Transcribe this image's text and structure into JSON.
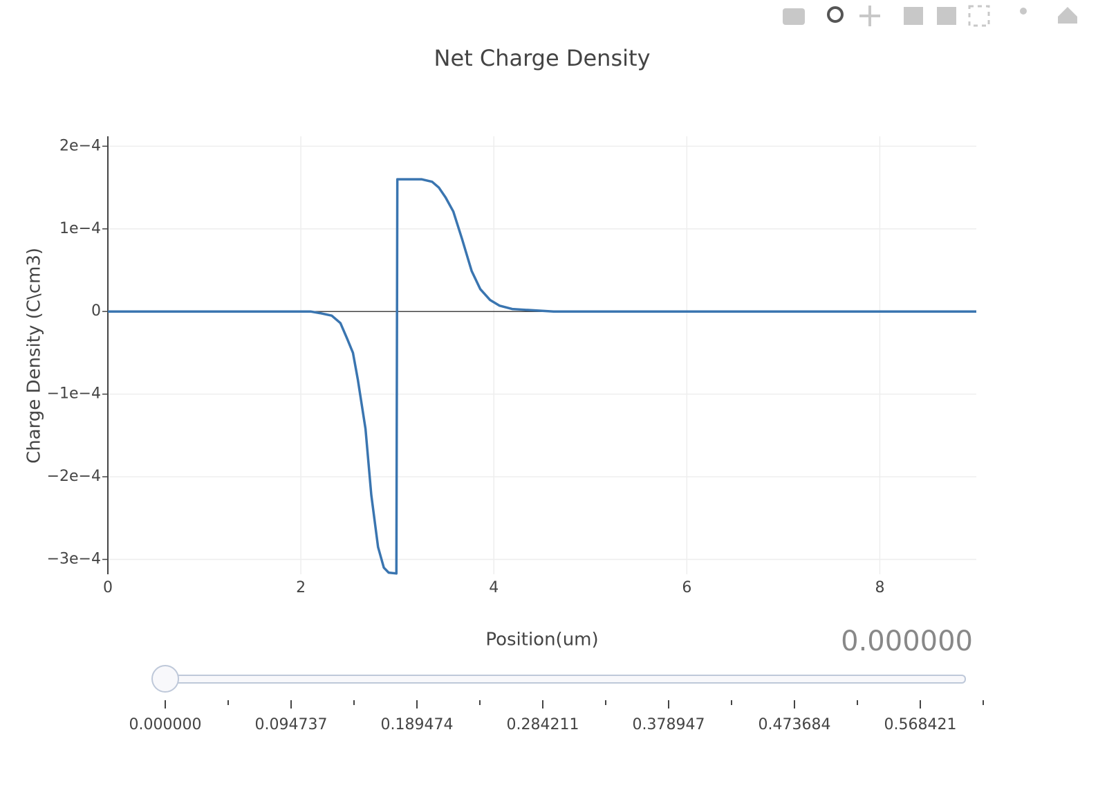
{
  "chart_data": {
    "type": "line",
    "title": "Net Charge Density",
    "x_label": "Position(um)",
    "y_label": "Charge Density (C\\cm3)",
    "x": [
      0,
      2.1,
      2.2,
      2.32,
      2.41,
      2.48,
      2.54,
      2.59,
      2.67,
      2.73,
      2.8,
      2.86,
      2.91,
      2.99,
      3.0,
      3.25,
      3.36,
      3.43,
      3.5,
      3.58,
      3.67,
      3.77,
      3.86,
      3.96,
      4.06,
      4.19,
      4.33,
      4.62,
      9
    ],
    "series": [
      {
        "name": "Net Charge Density",
        "color": "#3a75b0",
        "values": [
          0,
          0,
          -2e-06,
          -5e-06,
          -1.4e-05,
          -3.3e-05,
          -5e-05,
          -8.2e-05,
          -0.000142,
          -0.000222,
          -0.000285,
          -0.00031,
          -0.000316,
          -0.000317,
          0.00016,
          0.00016,
          0.000157,
          0.00015,
          0.000138,
          0.000121,
          8.8e-05,
          4.9e-05,
          2.7e-05,
          1.4e-05,
          7e-06,
          3e-06,
          2e-06,
          0,
          0
        ]
      }
    ],
    "xlim": [
      0,
      9
    ],
    "xticks": [
      0,
      2,
      4,
      6,
      8
    ],
    "ylim": [
      -0.000318,
      0.000212
    ],
    "yticks": [
      {
        "value": -0.0003,
        "label": "−3e−4"
      },
      {
        "value": -0.0002,
        "label": "−2e−4"
      },
      {
        "value": -0.0001,
        "label": "−1e−4"
      },
      0,
      {
        "value": 0.0001,
        "label": "1e−4"
      },
      {
        "value": 0.0002,
        "label": "2e−4"
      }
    ],
    "grid": true,
    "zeroline": true,
    "slider": {
      "current_label": "0.000000",
      "tick_labels": [
        "0.000000",
        "0.094737",
        "0.189474",
        "0.284211",
        "0.378947",
        "0.473684",
        "0.568421"
      ]
    }
  }
}
